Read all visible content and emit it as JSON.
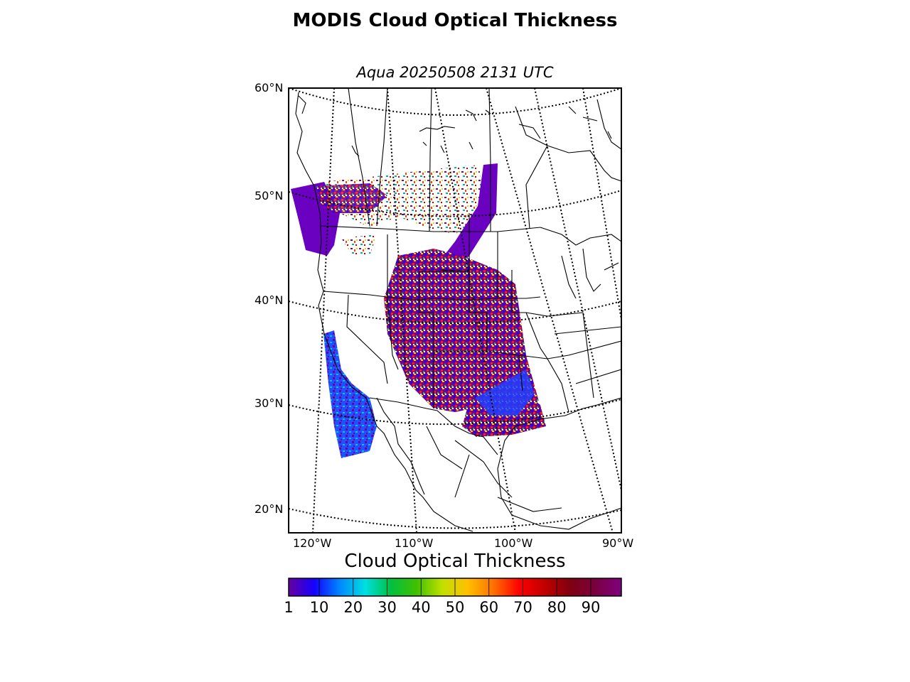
{
  "figure": {
    "title": "MODIS Cloud Optical Thickness",
    "subtitle": "Aqua 20250508 2131 UTC"
  },
  "map": {
    "lat_labels": [
      "60°N",
      "50°N",
      "40°N",
      "30°N",
      "20°N"
    ],
    "lon_labels": [
      "120°W",
      "110°W",
      "100°W",
      "90°W"
    ],
    "extent": {
      "lon": [
        -122.5,
        -90
      ],
      "lat": [
        18,
        60
      ]
    }
  },
  "colorbar": {
    "label": "Cloud Optical Thickness",
    "range": [
      1,
      99
    ],
    "ticks": [
      "1",
      "10",
      "20",
      "30",
      "40",
      "50",
      "60",
      "70",
      "80",
      "90"
    ],
    "colors": [
      "#6a00a0",
      "#1400ff",
      "#0088ff",
      "#00e0e0",
      "#00c040",
      "#40c000",
      "#c0e000",
      "#ffc000",
      "#ff7000",
      "#ff0000",
      "#c00000",
      "#800010",
      "#7a0040",
      "#800080"
    ]
  }
}
